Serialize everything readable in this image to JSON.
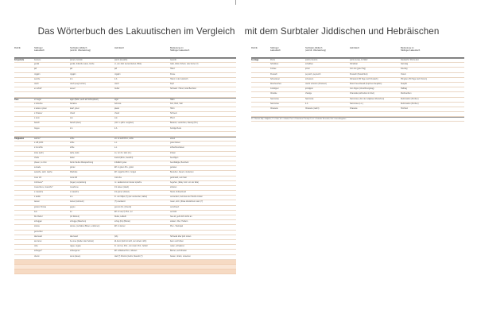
{
  "title": {
    "part1": "Das Wörterbuch des Lakuutischen im Vergleich",
    "part2": "mit dem Surbtaler Jiddischen und Hebräischen"
  },
  "columns": [
    "Rubrik",
    "Stülinger\nLakuutisch",
    "Surbtaler Jiddisch\n(und dt. Übersetzung)",
    "Hebräisch",
    "Bedeutung im\nStülinger Lakuutisch"
  ],
  "left_rows": [
    {
      "cat": "Körperteile",
      "a": "boonere",
      "b": "ponem, bounim",
      "c": "panim (Gesicht)",
      "d": "Gesicht",
      "style": "sec"
    },
    {
      "cat": "",
      "a": "gezäk",
      "b": "gezäk, Jüdische Laute, Grobe",
      "c": "vt, von Jidd. tsenat (Sehen, Blick)",
      "d": "Gäst, Weld, Schein, oder Zezer (?)",
      "style": ""
    },
    {
      "cat": "",
      "a": "jad",
      "b": "jad",
      "c": "jad",
      "d": "Hand",
      "style": ""
    },
    {
      "cat": "",
      "a": "rogajim",
      "b": "rogajim",
      "c": "rogajim",
      "d": "Füsse",
      "style": ""
    },
    {
      "cat": "",
      "a": "sesche",
      "b": "k.A.",
      "c": "k.A.",
      "d": "Hand, in der Lakutsch.",
      "style": ""
    },
    {
      "cat": "",
      "a": "rosch",
      "b": "rosch (engl. kotzer)",
      "c": "rosch",
      "d": "Kopf",
      "style": ""
    },
    {
      "cat": "",
      "a": "en scheff",
      "b": "sereef",
      "c": "ziebar",
      "d": "Schwanz / Hand, Grad Bechstel",
      "style": ""
    },
    {
      "cat": "",
      "a": "",
      "b": "",
      "c": "",
      "d": "",
      "style": ""
    },
    {
      "cat": "Tiere",
      "a": "en seger",
      "b": "sigor (Hahn, auch als Schimpfwort)",
      "c": "sigor",
      "d": "Hahn",
      "style": "sec"
    },
    {
      "cat": "",
      "a": "s behelme",
      "b": "behaime",
      "c": "behema",
      "d": "Kuh, Rind, Vieh",
      "style": ""
    },
    {
      "cat": "",
      "a": "s keiles o jonen",
      "b": "kelef, jonen",
      "c": "jawan",
      "d": "Huhn",
      "style": ""
    },
    {
      "cat": "",
      "a": "s Chasser",
      "b": "chasir",
      "c": "chasir",
      "d": "Schwein",
      "style": ""
    },
    {
      "cat": "",
      "a": "s suus",
      "b": "sus",
      "c": "sus",
      "d": "Pferd",
      "style": ""
    },
    {
      "cat": "",
      "a": "barsch",
      "b": "barsch (klein)",
      "c": "(mitt. v.-jahm. vergüten)",
      "d": "Bekannt, verstorben, Zaunig (Hm)",
      "style": ""
    },
    {
      "cat": "",
      "a": "ziegeu",
      "b": "k.A.",
      "c": "k.A.",
      "d": "bockige Rede",
      "style": ""
    },
    {
      "cat": "",
      "a": "",
      "b": "",
      "c": "",
      "d": "",
      "style": ""
    },
    {
      "cat": "Tätigkeiten",
      "a": "sachre*",
      "b": "schle",
      "c": "ett. so wohl Prot., sohle",
      "d": "essen",
      "style": "sec"
    },
    {
      "cat": "",
      "a": "s raff pricht",
      "b": "schle",
      "c": "s.o.",
      "d": "guten Essen",
      "style": ""
    },
    {
      "cat": "",
      "a": "s los schle",
      "b": "schle",
      "c": "s.o.",
      "d": "schlechtes Essen",
      "style": ""
    },
    {
      "cat": "",
      "a": "toote (sehr)",
      "b": "taufe, taufe",
      "c": "so, von hc. taint (zu.)",
      "d": "trinken",
      "style": ""
    },
    {
      "cat": "",
      "a": "chelle",
      "b": "kadel",
      "c": "kowod (Ehre, Gewicht)",
      "d": "beerdigen",
      "style": ""
    },
    {
      "cat": "",
      "a": "pfesen, ze trinn",
      "b": "Fehle Stellen Manspachzerg",
      "c": "Inhaltlich gutes",
      "d": "beschädigte, Bescheid",
      "style": ""
    },
    {
      "cat": "",
      "a": "sumade",
      "b": "günter",
      "c": "Eff. in güten Pro., günst",
      "d": "gebietet",
      "style": ""
    },
    {
      "cat": "",
      "a": "sekache, sach, tsache",
      "b": "Wachelle",
      "c": "Eff. nogachut Prot., hoigen",
      "d": "Bestehen, bauern, studenten",
      "style": ""
    },
    {
      "cat": "",
      "a": "mour mft",
      "b": "mora fuft",
      "c": "mora fuu",
      "d": "gebündelt, nein hast",
      "style": ""
    },
    {
      "cat": "",
      "a": "minimerer*",
      "b": "(liegen) verpackung",
      "c": "nc. sadaramonum Asster sprache",
      "d": "begehen, (Eday mod. von der Eda)",
      "style": ""
    },
    {
      "cat": "",
      "a": "meauchene, mausche*",
      "b": "meachene",
      "c": "Imt saleen (daart)",
      "d": "arbeiten",
      "style": ""
    },
    {
      "cat": "",
      "a": "s mausche",
      "b": "s mausche",
      "c": "Imt gruner (Arbeit)",
      "d": "Streik, Schwerbund",
      "style": ""
    },
    {
      "cat": "",
      "a": "s sauliu",
      "b": "k.A.",
      "c": "ttr. von Miljus (?) (der verwendet, Gabel)",
      "d": "verwenden, Geld aus der Tasche ziehen",
      "style": ""
    },
    {
      "cat": "",
      "a": "wunen",
      "b": "wnnen (wmmem)",
      "c": "(?) unerkannt",
      "d": "ruuen, ehrn, (Roae rderdehren nuum (?)",
      "style": ""
    },
    {
      "cat": "",
      "a": "gostes / Rosse",
      "b": "gegou",
      "c": "genem (Ks.) (Fuerst)",
      "d": "verschwert",
      "style": ""
    },
    {
      "cat": "",
      "a": "tum",
      "b": "tur",
      "c": "Eff. In tua (?) Prot., tur",
      "d": "verrückt",
      "style": ""
    },
    {
      "cat": "",
      "a": "Dur Rebul",
      "b": "(kz Reboul)",
      "c": "Rekte, Lalbeth",
      "d": "hau ab, geht dich nichts an",
      "style": ""
    },
    {
      "cat": "",
      "a": "schuggen",
      "b": "schugge (Maschen)",
      "c": "schug (Ks) (Blunat)",
      "d": "stattern, Wer, Hudlern",
      "style": ""
    },
    {
      "cat": "",
      "a": "stanne",
      "b": "stanne, (verhalten Bituen, entfernen)",
      "c": "Eff. in stamer",
      "d": "Pien - Weinapel",
      "style": ""
    },
    {
      "cat": "",
      "a": "gemuchen",
      "b": "",
      "c": "",
      "d": "",
      "style": ""
    },
    {
      "cat": "",
      "a": "das beteri",
      "b": "das beteri",
      "c": "(kA)",
      "d": "Schwelle über jidd. rosten",
      "style": ""
    },
    {
      "cat": "",
      "a": "sie buren",
      "b": "bu-nnes (bettler oder helmat)",
      "c": "kil-bunn (liebt mit sich, der schein nicht)",
      "d": "lielen und hoben",
      "style": ""
    },
    {
      "cat": "",
      "a": "robe",
      "b": "rague, rogare",
      "c": "ttr. von Iva, Prot., von smeil, Prot., Schall",
      "d": "reden, schwatzen",
      "style": ""
    },
    {
      "cat": "",
      "a": "schlegen*",
      "b": "schlengener",
      "c": "Eff. schlabsel Prot., Gibelen",
      "d": "Brehen, auf Arbeiten",
      "style": ""
    },
    {
      "cat": "",
      "a": "oberst",
      "b": "stens (lasen)",
      "c": "dad (?) Nimmis (Jenlis, Staunitt (?)",
      "d": "basten, rütteln, umsetzen",
      "style": ""
    },
    {
      "cat": "",
      "a": "",
      "b": "",
      "c": "",
      "d": "",
      "style": "bar"
    },
    {
      "cat": "",
      "a": "",
      "b": "",
      "c": "",
      "d": "",
      "style": "bar light"
    },
    {
      "cat": "",
      "a": "",
      "b": "",
      "c": "",
      "d": "",
      "style": "bar"
    }
  ],
  "right_rows": [
    {
      "cat": "Festtage",
      "a": "Purim",
      "b": "purimt, boumm",
      "c": "purim (Lose), Im März",
      "d": "Fastnacht / Purim-fest",
      "style": "sec"
    },
    {
      "cat": "",
      "a": "Schabbes",
      "b": "schabbes",
      "c": "Schabbat",
      "d": "Samstag",
      "style": ""
    },
    {
      "cat": "",
      "a": "Jonkee",
      "b": "jonter",
      "c": "Jom tov (guter Tag)",
      "d": "Feiertag",
      "style": ""
    },
    {
      "cat": "",
      "a": "Pessach",
      "b": "peyssch, peyssoch",
      "c": "Pessach (Pesachfest)",
      "d": "Ostern",
      "style": ""
    },
    {
      "cat": "",
      "a": "Schewwuet",
      "b": "schewuos",
      "c": "Schawuot (50 Tage nach Pessach)",
      "d": "Pfingsten (50 Tage nach Ostern)",
      "style": ""
    },
    {
      "cat": "",
      "a": "Roschesches",
      "b": "roschr schomm (Finsterer)",
      "c": "Rosch ha-schanah (Kopf des Neujahrs)",
      "d": "Neujahr",
      "style": ""
    },
    {
      "cat": "",
      "a": "Jomkipper",
      "b": "jomkippur",
      "c": "Jom Kippur (Versöhnungstag)",
      "d": "Halbtag",
      "style": ""
    },
    {
      "cat": "",
      "a": "Chanike",
      "b": "chanige",
      "c": "Chanukka (Lichterfest im Dez)",
      "d": "Weihnachten",
      "style": ""
    },
    {
      "cat": "",
      "a": "Sammowe",
      "b": "Sammosa",
      "c": "Sammowe (Jnur der religiösen Menschen)",
      "d": "Reformation (Kirchen)",
      "style": ""
    },
    {
      "cat": "",
      "a": "Sammowe",
      "b": "k.A.",
      "c": "Sammowe (s.o.)",
      "d": "Reformation (Kirchen)",
      "style": ""
    },
    {
      "cat": "",
      "a": "Chaosole",
      "b": "Chassole (nacht)",
      "c": "Chassole",
      "d": "Hochzeit",
      "style": ""
    },
    {
      "cat": "",
      "a": "",
      "b": "",
      "c": "",
      "d": "",
      "style": ""
    },
    {
      "cat": "",
      "a": "",
      "b": "",
      "c": "",
      "d": "",
      "style": "note"
    }
  ],
  "note": "N. = Nomen, Adj. = Adjektiv, V. = Verb, Inf. = Infinitiv, Prot. = Präteritum / Partizip II, zit. = Verbaler Einschub, k.A. = keine Angaben"
}
